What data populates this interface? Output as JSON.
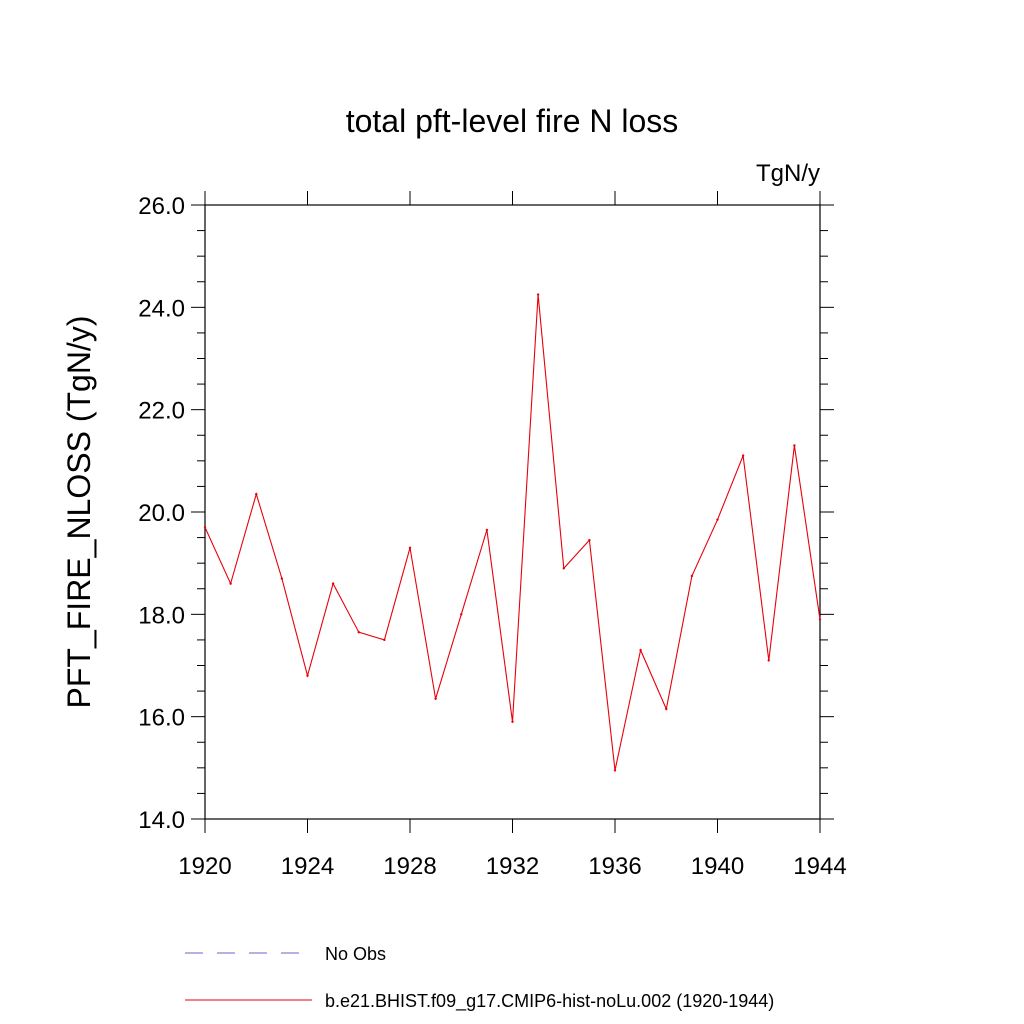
{
  "chart_data": {
    "type": "line",
    "title": "total pft-level fire N loss",
    "units_label": "TgN/y",
    "ylabel": "PFT_FIRE_NLOSS  (TgN/y)",
    "xlabel": "",
    "xlim": [
      1920,
      1944
    ],
    "ylim": [
      14.0,
      26.0
    ],
    "x_ticks": [
      "1920",
      "1924",
      "1928",
      "1932",
      "1936",
      "1940",
      "1944"
    ],
    "y_ticks": [
      "14.0",
      "16.0",
      "18.0",
      "20.0",
      "22.0",
      "24.0",
      "26.0"
    ],
    "grid": false,
    "legend_position": "bottom",
    "x": [
      1920,
      1921,
      1922,
      1923,
      1924,
      1925,
      1926,
      1927,
      1928,
      1929,
      1930,
      1931,
      1932,
      1933,
      1934,
      1935,
      1936,
      1937,
      1938,
      1939,
      1940,
      1941,
      1942,
      1943,
      1944
    ],
    "series": [
      {
        "name": "b.e21.BHIST.f09_g17.CMIP6-hist-noLu.002 (1920-1944)",
        "color": "#e8000b",
        "style": "solid",
        "values": [
          19.7,
          18.6,
          20.35,
          18.7,
          16.8,
          18.6,
          17.65,
          17.5,
          19.3,
          16.35,
          18.0,
          19.65,
          15.9,
          24.25,
          18.9,
          19.45,
          14.95,
          17.3,
          16.15,
          18.75,
          19.85,
          21.1,
          17.1,
          21.3,
          17.9
        ]
      }
    ],
    "legend": [
      {
        "label": "No Obs",
        "color": "#6666cc",
        "style": "dashed"
      },
      {
        "label": "b.e21.BHIST.f09_g17.CMIP6-hist-noLu.002 (1920-1944)",
        "color": "#e8000b",
        "style": "solid"
      }
    ]
  }
}
